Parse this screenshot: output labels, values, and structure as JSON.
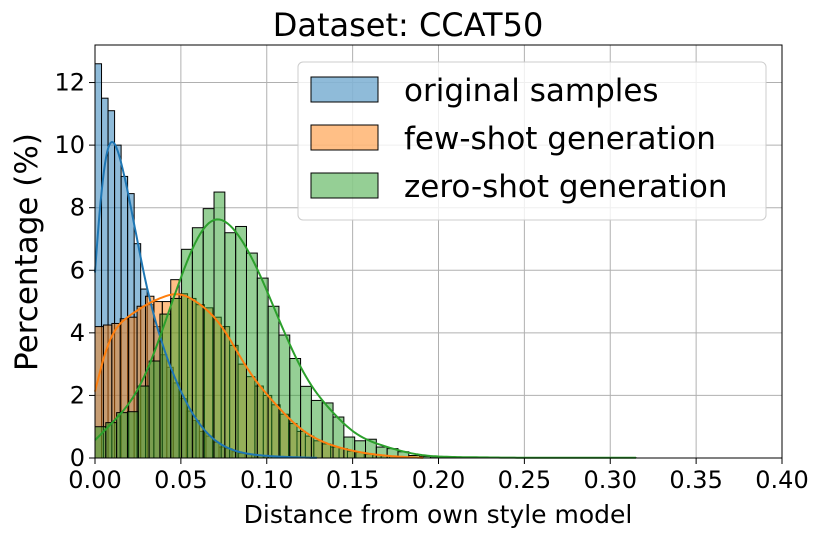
{
  "chart_data": {
    "type": "bar",
    "subtype": "histogram-with-kde",
    "title": "Dataset: CCAT50",
    "xlabel": "Distance from own style model",
    "ylabel": "Percentage (%)",
    "xlim": [
      0,
      0.4
    ],
    "ylim": [
      0,
      13.2
    ],
    "xticks": [
      "0.00",
      "0.05",
      "0.10",
      "0.15",
      "0.20",
      "0.25",
      "0.30",
      "0.35",
      "0.40"
    ],
    "yticks": [
      "0",
      "2",
      "4",
      "6",
      "8",
      "10",
      "12"
    ],
    "grid": true,
    "legend_position": "top-right",
    "series": [
      {
        "name": "original samples",
        "color": "#1f77b4",
        "bin_start": 0,
        "bin_width": 0.0038,
        "values": [
          12.6,
          11.5,
          11.1,
          10.0,
          9.0,
          8.45,
          6.85,
          5.4,
          4.9,
          4.2,
          3.3,
          2.9,
          2.4,
          1.9,
          1.5,
          1.2,
          0.85,
          0.7,
          0.5,
          0.35,
          0.3,
          0.2,
          0.15,
          0.12,
          0.1,
          0.08,
          0.06,
          0.05,
          0.04,
          0.03,
          0.02,
          0.02,
          0.01,
          0.01
        ]
      },
      {
        "name": "few-shot generation",
        "color": "#ff7f0e",
        "bin_start": 0,
        "bin_width": 0.0049,
        "values": [
          4.2,
          4.25,
          4.3,
          4.45,
          4.5,
          4.85,
          5.17,
          5.0,
          5.0,
          5.7,
          5.25,
          5.1,
          4.9,
          4.8,
          4.5,
          4.2,
          3.6,
          3.0,
          2.6,
          2.3,
          2.0,
          1.7,
          1.4,
          1.1,
          0.85,
          0.7,
          0.55,
          0.45,
          0.35,
          0.3,
          0.22,
          0.18,
          0.12,
          0.1,
          0.07,
          0.05,
          0.03,
          0.02,
          0.01
        ]
      },
      {
        "name": "zero-shot generation",
        "color": "#2ca02c",
        "bin_start": 0,
        "bin_width": 0.0063,
        "values": [
          1.0,
          1.13,
          1.45,
          1.48,
          2.3,
          3.1,
          4.6,
          5.1,
          6.67,
          7.36,
          7.97,
          8.5,
          7.2,
          7.4,
          6.55,
          5.75,
          4.85,
          3.93,
          3.18,
          2.29,
          1.84,
          1.76,
          1.31,
          0.67,
          0.55,
          0.6,
          0.35,
          0.3,
          0.2,
          0.08,
          0.05,
          0.04,
          0.03,
          0.03,
          0.02,
          0.02,
          0.02,
          0.01,
          0.01,
          0.01,
          0.01,
          0.01,
          0.01,
          0.01,
          0.01,
          0.01,
          0.01,
          0.01,
          0.01,
          0.01
        ]
      }
    ]
  }
}
